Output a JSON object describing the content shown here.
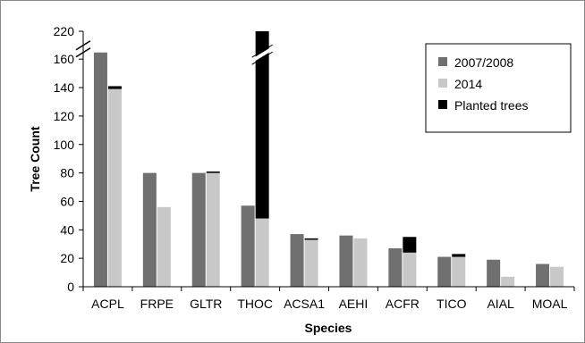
{
  "chart_data": {
    "type": "bar",
    "xlabel": "Species",
    "ylabel": "Tree Count",
    "categories": [
      "ACPL",
      "FRPE",
      "GLTR",
      "THOC",
      "ACSA1",
      "AEHI",
      "ACFR",
      "TICO",
      "AIAL",
      "MOAL"
    ],
    "series": [
      {
        "name": "2007/2008",
        "values": [
          163,
          80,
          80,
          57,
          37,
          36,
          27,
          21,
          19,
          16
        ]
      },
      {
        "name": "2014",
        "values": [
          139,
          56,
          80,
          48,
          33,
          34,
          24,
          21,
          7,
          14
        ]
      },
      {
        "name": "Planted trees",
        "stacked_on": "2014",
        "values": [
          2,
          0,
          1,
          172,
          1,
          0,
          11,
          2,
          0,
          0
        ]
      }
    ],
    "y_ticks": [
      0,
      20,
      40,
      60,
      80,
      100,
      120,
      140,
      160,
      220
    ],
    "ylim": [
      0,
      220
    ],
    "axis_break": "between 160 and 220",
    "grid": false,
    "legend_position": "top-right",
    "colors": {
      "2007/2008": "#707070",
      "2014": "#c8c8c8",
      "Planted trees": "#000000"
    }
  }
}
